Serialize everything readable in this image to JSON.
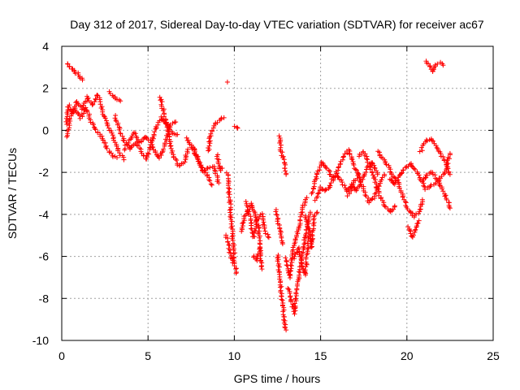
{
  "chart_data": {
    "type": "scatter",
    "title": "Day 312 of 2017, Sidereal Day-to-day VTEC variation (SDTVAR) for receiver ac67",
    "xlabel": "GPS time / hours",
    "ylabel": "SDTVAR / TECUs",
    "xlim": [
      0,
      25
    ],
    "ylim": [
      -10,
      4
    ],
    "xticks": [
      0,
      5,
      10,
      15,
      20,
      25
    ],
    "yticks": [
      -10,
      -8,
      -6,
      -4,
      -2,
      0,
      2,
      4
    ],
    "x_tick_labels": [
      "0",
      "5",
      "10",
      "15",
      "20",
      "25"
    ],
    "y_tick_labels": [
      "-10",
      "-8",
      "-6",
      "-4",
      "-2",
      "0",
      "2",
      "4"
    ],
    "grid": true,
    "marker": "+",
    "series": [
      {
        "name": "SDTVAR",
        "color": "#ff0000",
        "tracks": [
          [
            [
              0.3,
              3.2
            ],
            [
              0.6,
              2.9
            ],
            [
              0.9,
              2.7
            ],
            [
              1.2,
              2.4
            ]
          ],
          [
            [
              0.25,
              0.3
            ],
            [
              0.4,
              1.2
            ],
            [
              0.6,
              0.8
            ],
            [
              0.9,
              1.4
            ],
            [
              1.2,
              1.0
            ],
            [
              1.5,
              1.6
            ],
            [
              1.8,
              1.2
            ],
            [
              2.1,
              1.7
            ],
            [
              2.4,
              0.8
            ],
            [
              2.7,
              0.2
            ],
            [
              3.0,
              -0.4
            ],
            [
              3.3,
              -1.0
            ],
            [
              3.6,
              -1.4
            ]
          ],
          [
            [
              0.3,
              -0.3
            ],
            [
              0.5,
              0.6
            ],
            [
              0.8,
              1.0
            ],
            [
              1.1,
              0.6
            ],
            [
              1.4,
              1.1
            ],
            [
              1.7,
              0.4
            ],
            [
              2.0,
              0.0
            ],
            [
              2.3,
              -0.3
            ],
            [
              2.6,
              -0.8
            ],
            [
              2.9,
              -1.2
            ],
            [
              3.2,
              -1.3
            ]
          ],
          [
            [
              2.8,
              1.8
            ],
            [
              3.1,
              1.5
            ],
            [
              3.4,
              1.4
            ]
          ],
          [
            [
              3.1,
              0.7
            ],
            [
              3.4,
              -0.1
            ],
            [
              3.7,
              -0.6
            ],
            [
              4.0,
              -0.9
            ],
            [
              4.3,
              -0.6
            ],
            [
              4.6,
              -1.0
            ],
            [
              4.9,
              -1.4
            ],
            [
              5.2,
              -0.6
            ],
            [
              5.5,
              0.2
            ],
            [
              5.8,
              0.6
            ],
            [
              6.1,
              0.3
            ],
            [
              6.4,
              -0.1
            ],
            [
              6.7,
              -0.2
            ]
          ],
          [
            [
              3.6,
              -0.9
            ],
            [
              3.9,
              -0.5
            ],
            [
              4.2,
              -0.1
            ],
            [
              4.5,
              -0.6
            ],
            [
              4.8,
              -0.3
            ],
            [
              5.1,
              -0.5
            ],
            [
              5.4,
              -1.0
            ],
            [
              5.7,
              -1.3
            ],
            [
              6.0,
              -0.6
            ],
            [
              6.3,
              0.3
            ],
            [
              6.6,
              0.4
            ]
          ],
          [
            [
              5.7,
              1.6
            ],
            [
              5.9,
              0.9
            ],
            [
              6.1,
              0.2
            ],
            [
              6.3,
              -0.6
            ],
            [
              6.5,
              -1.3
            ],
            [
              6.8,
              -1.7
            ],
            [
              7.1,
              -1.5
            ],
            [
              7.3,
              -0.9
            ]
          ],
          [
            [
              7.2,
              -0.4
            ],
            [
              7.5,
              -0.7
            ],
            [
              7.8,
              -1.2
            ],
            [
              8.1,
              -1.8
            ],
            [
              8.4,
              -2.1
            ],
            [
              8.7,
              -2.6
            ]
          ],
          [
            [
              7.6,
              -0.8
            ],
            [
              7.9,
              -1.4
            ],
            [
              8.2,
              -1.9
            ],
            [
              8.5,
              -1.8
            ],
            [
              8.8,
              -1.7
            ],
            [
              9.1,
              -2.5
            ]
          ],
          [
            [
              8.5,
              -1.0
            ],
            [
              8.6,
              -0.3
            ],
            [
              8.8,
              0.2
            ],
            [
              9.0,
              0.4
            ],
            [
              9.2,
              0.5
            ],
            [
              9.4,
              0.6
            ]
          ],
          [
            [
              9.0,
              -1.2
            ],
            [
              9.1,
              -1.6
            ],
            [
              9.2,
              -1.9
            ],
            [
              9.3,
              -1.8
            ]
          ],
          [
            [
              9.6,
              2.3
            ]
          ],
          [
            [
              9.6,
              -2.0
            ],
            [
              9.7,
              -3.0
            ],
            [
              9.8,
              -4.0
            ],
            [
              9.9,
              -5.0
            ],
            [
              10.0,
              -6.0
            ],
            [
              10.1,
              -6.8
            ]
          ],
          [
            [
              9.5,
              -5.0
            ],
            [
              9.7,
              -5.6
            ],
            [
              9.9,
              -6.3
            ]
          ],
          [
            [
              10.05,
              0.2
            ],
            [
              10.2,
              0.1
            ]
          ],
          [
            [
              10.4,
              -4.8
            ],
            [
              10.6,
              -4.1
            ],
            [
              10.8,
              -3.8
            ],
            [
              11.0,
              -3.5
            ],
            [
              11.2,
              -4.0
            ],
            [
              11.4,
              -4.6
            ],
            [
              11.5,
              -5.8
            ],
            [
              11.6,
              -6.6
            ]
          ],
          [
            [
              10.7,
              -3.4
            ],
            [
              10.9,
              -4.1
            ],
            [
              11.1,
              -5.1
            ],
            [
              11.3,
              -4.3
            ],
            [
              11.6,
              -4.0
            ],
            [
              11.8,
              -4.8
            ],
            [
              12.0,
              -5.1
            ]
          ],
          [
            [
              11.1,
              -6.0
            ],
            [
              11.3,
              -6.2
            ],
            [
              11.5,
              -5.6
            ]
          ],
          [
            [
              12.4,
              -3.8
            ],
            [
              12.6,
              -4.6
            ],
            [
              12.8,
              -5.4
            ]
          ],
          [
            [
              12.5,
              -5.9
            ],
            [
              12.6,
              -6.6
            ],
            [
              12.7,
              -7.5
            ],
            [
              12.8,
              -8.3
            ],
            [
              12.9,
              -9.0
            ],
            [
              13.0,
              -9.5
            ]
          ],
          [
            [
              12.6,
              -0.3
            ],
            [
              12.7,
              -0.9
            ],
            [
              12.9,
              -1.6
            ],
            [
              13.0,
              -2.1
            ]
          ],
          [
            [
              13.0,
              -6.1
            ],
            [
              13.2,
              -7.0
            ],
            [
              13.3,
              -6.3
            ],
            [
              13.4,
              -5.6
            ],
            [
              13.6,
              -5.0
            ],
            [
              13.8,
              -4.4
            ],
            [
              14.0,
              -3.6
            ],
            [
              14.2,
              -3.2
            ]
          ],
          [
            [
              13.1,
              -7.5
            ],
            [
              13.3,
              -8.1
            ],
            [
              13.5,
              -8.7
            ],
            [
              13.6,
              -7.6
            ],
            [
              13.8,
              -6.6
            ],
            [
              14.0,
              -5.6
            ],
            [
              14.2,
              -4.6
            ],
            [
              14.4,
              -3.9
            ]
          ],
          [
            [
              13.5,
              -6.1
            ],
            [
              13.7,
              -5.6
            ],
            [
              13.9,
              -6.3
            ],
            [
              14.1,
              -6.9
            ],
            [
              14.3,
              -5.1
            ]
          ],
          [
            [
              14.1,
              -4.1
            ],
            [
              14.3,
              -4.6
            ],
            [
              14.5,
              -5.6
            ],
            [
              14.6,
              -4.2
            ],
            [
              14.8,
              -3.9
            ]
          ],
          [
            [
              14.5,
              -3.0
            ],
            [
              14.8,
              -2.1
            ],
            [
              15.1,
              -1.5
            ],
            [
              15.4,
              -1.8
            ],
            [
              15.7,
              -2.3
            ],
            [
              16.0,
              -1.9
            ],
            [
              16.3,
              -1.3
            ],
            [
              16.6,
              -0.9
            ],
            [
              16.9,
              -1.6
            ],
            [
              17.2,
              -2.1
            ]
          ],
          [
            [
              14.7,
              -3.3
            ],
            [
              15.0,
              -2.7
            ],
            [
              15.3,
              -2.9
            ],
            [
              15.6,
              -2.6
            ],
            [
              15.9,
              -2.1
            ],
            [
              16.2,
              -2.4
            ],
            [
              16.5,
              -2.9
            ],
            [
              16.8,
              -2.6
            ],
            [
              17.1,
              -2.9
            ],
            [
              17.4,
              -2.3
            ],
            [
              17.7,
              -1.8
            ],
            [
              18.0,
              -1.5
            ],
            [
              18.3,
              -2.1
            ]
          ],
          [
            [
              17.2,
              -1.2
            ],
            [
              17.5,
              -1.0
            ],
            [
              17.8,
              -1.6
            ],
            [
              18.1,
              -2.3
            ],
            [
              18.4,
              -3.1
            ],
            [
              18.7,
              -3.5
            ],
            [
              19.0,
              -3.9
            ],
            [
              19.3,
              -3.6
            ]
          ],
          [
            [
              16.6,
              -3.1
            ],
            [
              16.9,
              -2.5
            ],
            [
              17.2,
              -2.1
            ],
            [
              17.5,
              -2.8
            ],
            [
              17.8,
              -3.4
            ],
            [
              18.1,
              -3.2
            ],
            [
              18.4,
              -2.6
            ],
            [
              18.7,
              -2.1
            ]
          ],
          [
            [
              18.3,
              -1.0
            ],
            [
              18.6,
              -1.3
            ],
            [
              18.9,
              -1.7
            ],
            [
              19.2,
              -2.2
            ],
            [
              19.5,
              -2.5
            ],
            [
              19.8,
              -3.2
            ],
            [
              20.1,
              -3.8
            ],
            [
              20.4,
              -4.1
            ],
            [
              20.7,
              -3.9
            ],
            [
              20.9,
              -3.3
            ]
          ],
          [
            [
              19.0,
              -2.3
            ],
            [
              19.3,
              -2.6
            ],
            [
              19.6,
              -2.1
            ],
            [
              19.9,
              -1.8
            ],
            [
              20.2,
              -1.6
            ],
            [
              20.5,
              -1.9
            ],
            [
              20.8,
              -2.3
            ],
            [
              21.1,
              -2.8
            ],
            [
              21.4,
              -2.6
            ]
          ],
          [
            [
              20.1,
              -4.6
            ],
            [
              20.3,
              -5.1
            ],
            [
              20.5,
              -4.8
            ],
            [
              20.7,
              -4.3
            ]
          ],
          [
            [
              20.8,
              -1.0
            ],
            [
              21.1,
              -0.5
            ],
            [
              21.4,
              -0.4
            ],
            [
              21.7,
              -0.8
            ],
            [
              22.0,
              -1.2
            ],
            [
              22.3,
              -1.6
            ],
            [
              22.5,
              -2.1
            ]
          ],
          [
            [
              20.9,
              -2.4
            ],
            [
              21.2,
              -2.1
            ],
            [
              21.5,
              -2.0
            ],
            [
              21.8,
              -2.4
            ],
            [
              22.1,
              -2.9
            ],
            [
              22.4,
              -3.4
            ],
            [
              22.5,
              -3.7
            ]
          ],
          [
            [
              21.6,
              -2.6
            ],
            [
              21.9,
              -2.3
            ],
            [
              22.2,
              -2.0
            ],
            [
              22.5,
              -1.1
            ]
          ],
          [
            [
              21.1,
              3.3
            ],
            [
              21.3,
              3.1
            ],
            [
              21.5,
              2.8
            ],
            [
              21.7,
              3.1
            ],
            [
              21.9,
              3.2
            ],
            [
              22.1,
              3.1
            ]
          ]
        ]
      }
    ]
  }
}
